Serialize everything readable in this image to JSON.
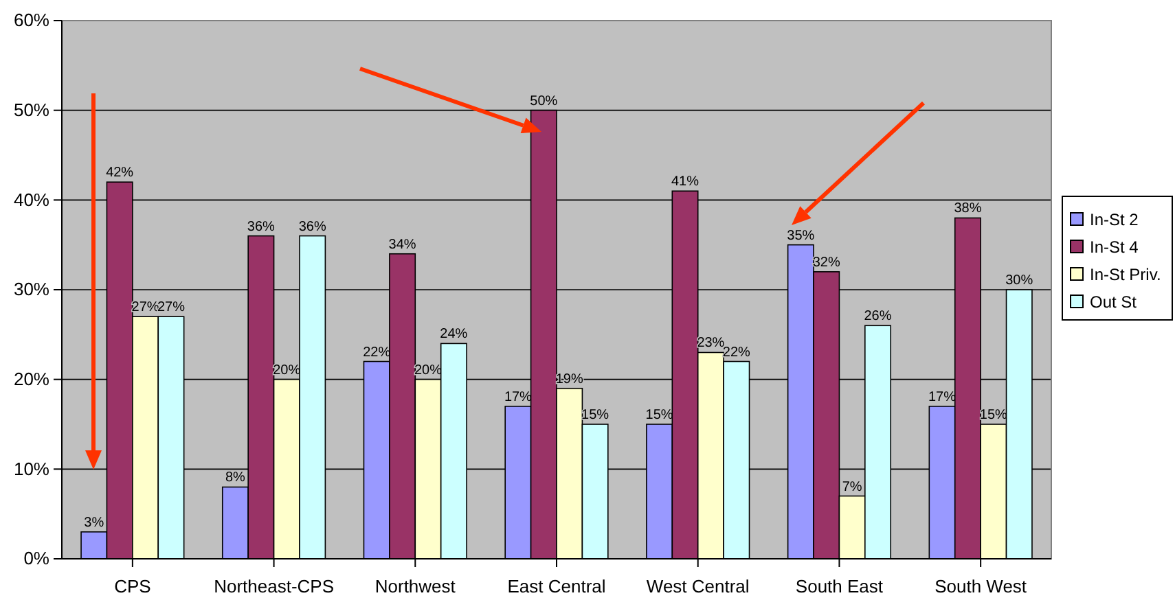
{
  "chart_data": {
    "type": "bar",
    "categories": [
      "CPS",
      "Northeast-CPS",
      "Northwest",
      "East Central",
      "West Central",
      "South East",
      "South West"
    ],
    "series": [
      {
        "name": "In-St 2",
        "color": "#9999ff",
        "values": [
          3,
          8,
          22,
          17,
          15,
          35,
          17
        ],
        "value_labels": [
          "3%",
          "8%",
          "22%",
          "17%",
          "15%",
          "35%",
          "17%"
        ]
      },
      {
        "name": "In-St 4",
        "color": "#993366",
        "values": [
          42,
          36,
          34,
          50,
          41,
          32,
          38
        ],
        "value_labels": [
          "42%",
          "36%",
          "34%",
          "50%",
          "41%",
          "32%",
          "38%"
        ]
      },
      {
        "name": "In-St Priv.",
        "color": "#ffffcc",
        "values": [
          27,
          20,
          20,
          19,
          23,
          7,
          15
        ],
        "value_labels": [
          "27%",
          "20%",
          "20%",
          "19%",
          "23%",
          "7%",
          "15%"
        ]
      },
      {
        "name": "Out St",
        "color": "#ccffff",
        "values": [
          27,
          36,
          24,
          15,
          22,
          26,
          30
        ],
        "value_labels": [
          "27%",
          "36%",
          "24%",
          "15%",
          "22%",
          "26%",
          "30%"
        ]
      }
    ],
    "ylim": [
      0,
      60
    ],
    "yticks": [
      {
        "value": 0,
        "label": "0%"
      },
      {
        "value": 10,
        "label": "10%"
      },
      {
        "value": 20,
        "label": "20%"
      },
      {
        "value": 30,
        "label": "30%"
      },
      {
        "value": 40,
        "label": "40%"
      },
      {
        "value": 50,
        "label": "50%"
      },
      {
        "value": 60,
        "label": "60%"
      }
    ],
    "grid": "y",
    "legend": "right"
  }
}
